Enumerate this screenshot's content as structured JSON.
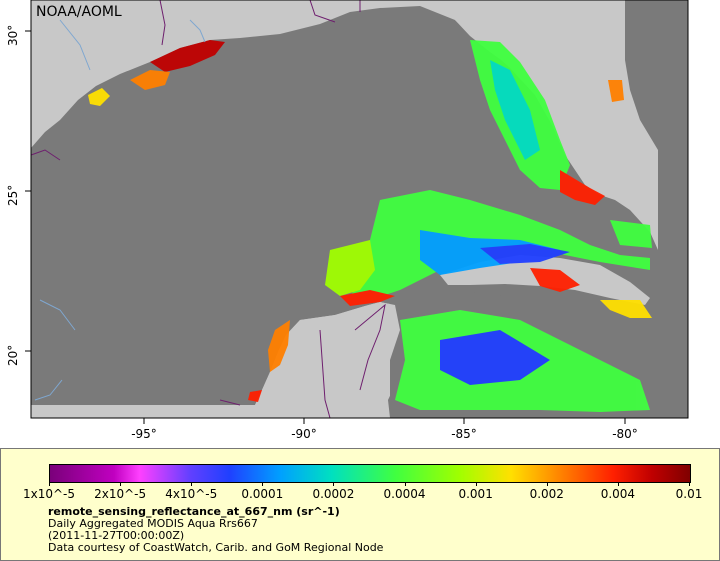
{
  "source_label": "NOAA/AOML",
  "longitude_ticks": [
    "-95°",
    "-90°",
    "-85°",
    "-80°"
  ],
  "latitude_ticks": [
    "30°",
    "25°",
    "20°"
  ],
  "colorbar": {
    "labels": [
      "1x10^-5",
      "2x10^-5",
      "4x10^-5",
      "0.0001",
      "0.0002",
      "0.0004",
      "0.001",
      "0.002",
      "0.004",
      "0.01"
    ],
    "colors": {
      "low": "#7a007a",
      "mid_low": "#2040ff",
      "mid": "#40ff40",
      "mid_high": "#ffe000",
      "high": "#800000"
    }
  },
  "legend_text": {
    "variable": "remote_sensing_reflectance_at_667_nm (sr^-1)",
    "description": "Daily Aggregated MODIS Aqua Rrs667",
    "time": "(2011-11-27T00:00:00Z)",
    "credit": "Data courtesy of CoastWatch, Carib. and GoM Regional Node"
  },
  "map_colors": {
    "land": "#c8c8c8",
    "no_data": "#7a7a7a",
    "water_boundary": "#7fa7d0",
    "political_boundary": "#6e1f6e"
  }
}
